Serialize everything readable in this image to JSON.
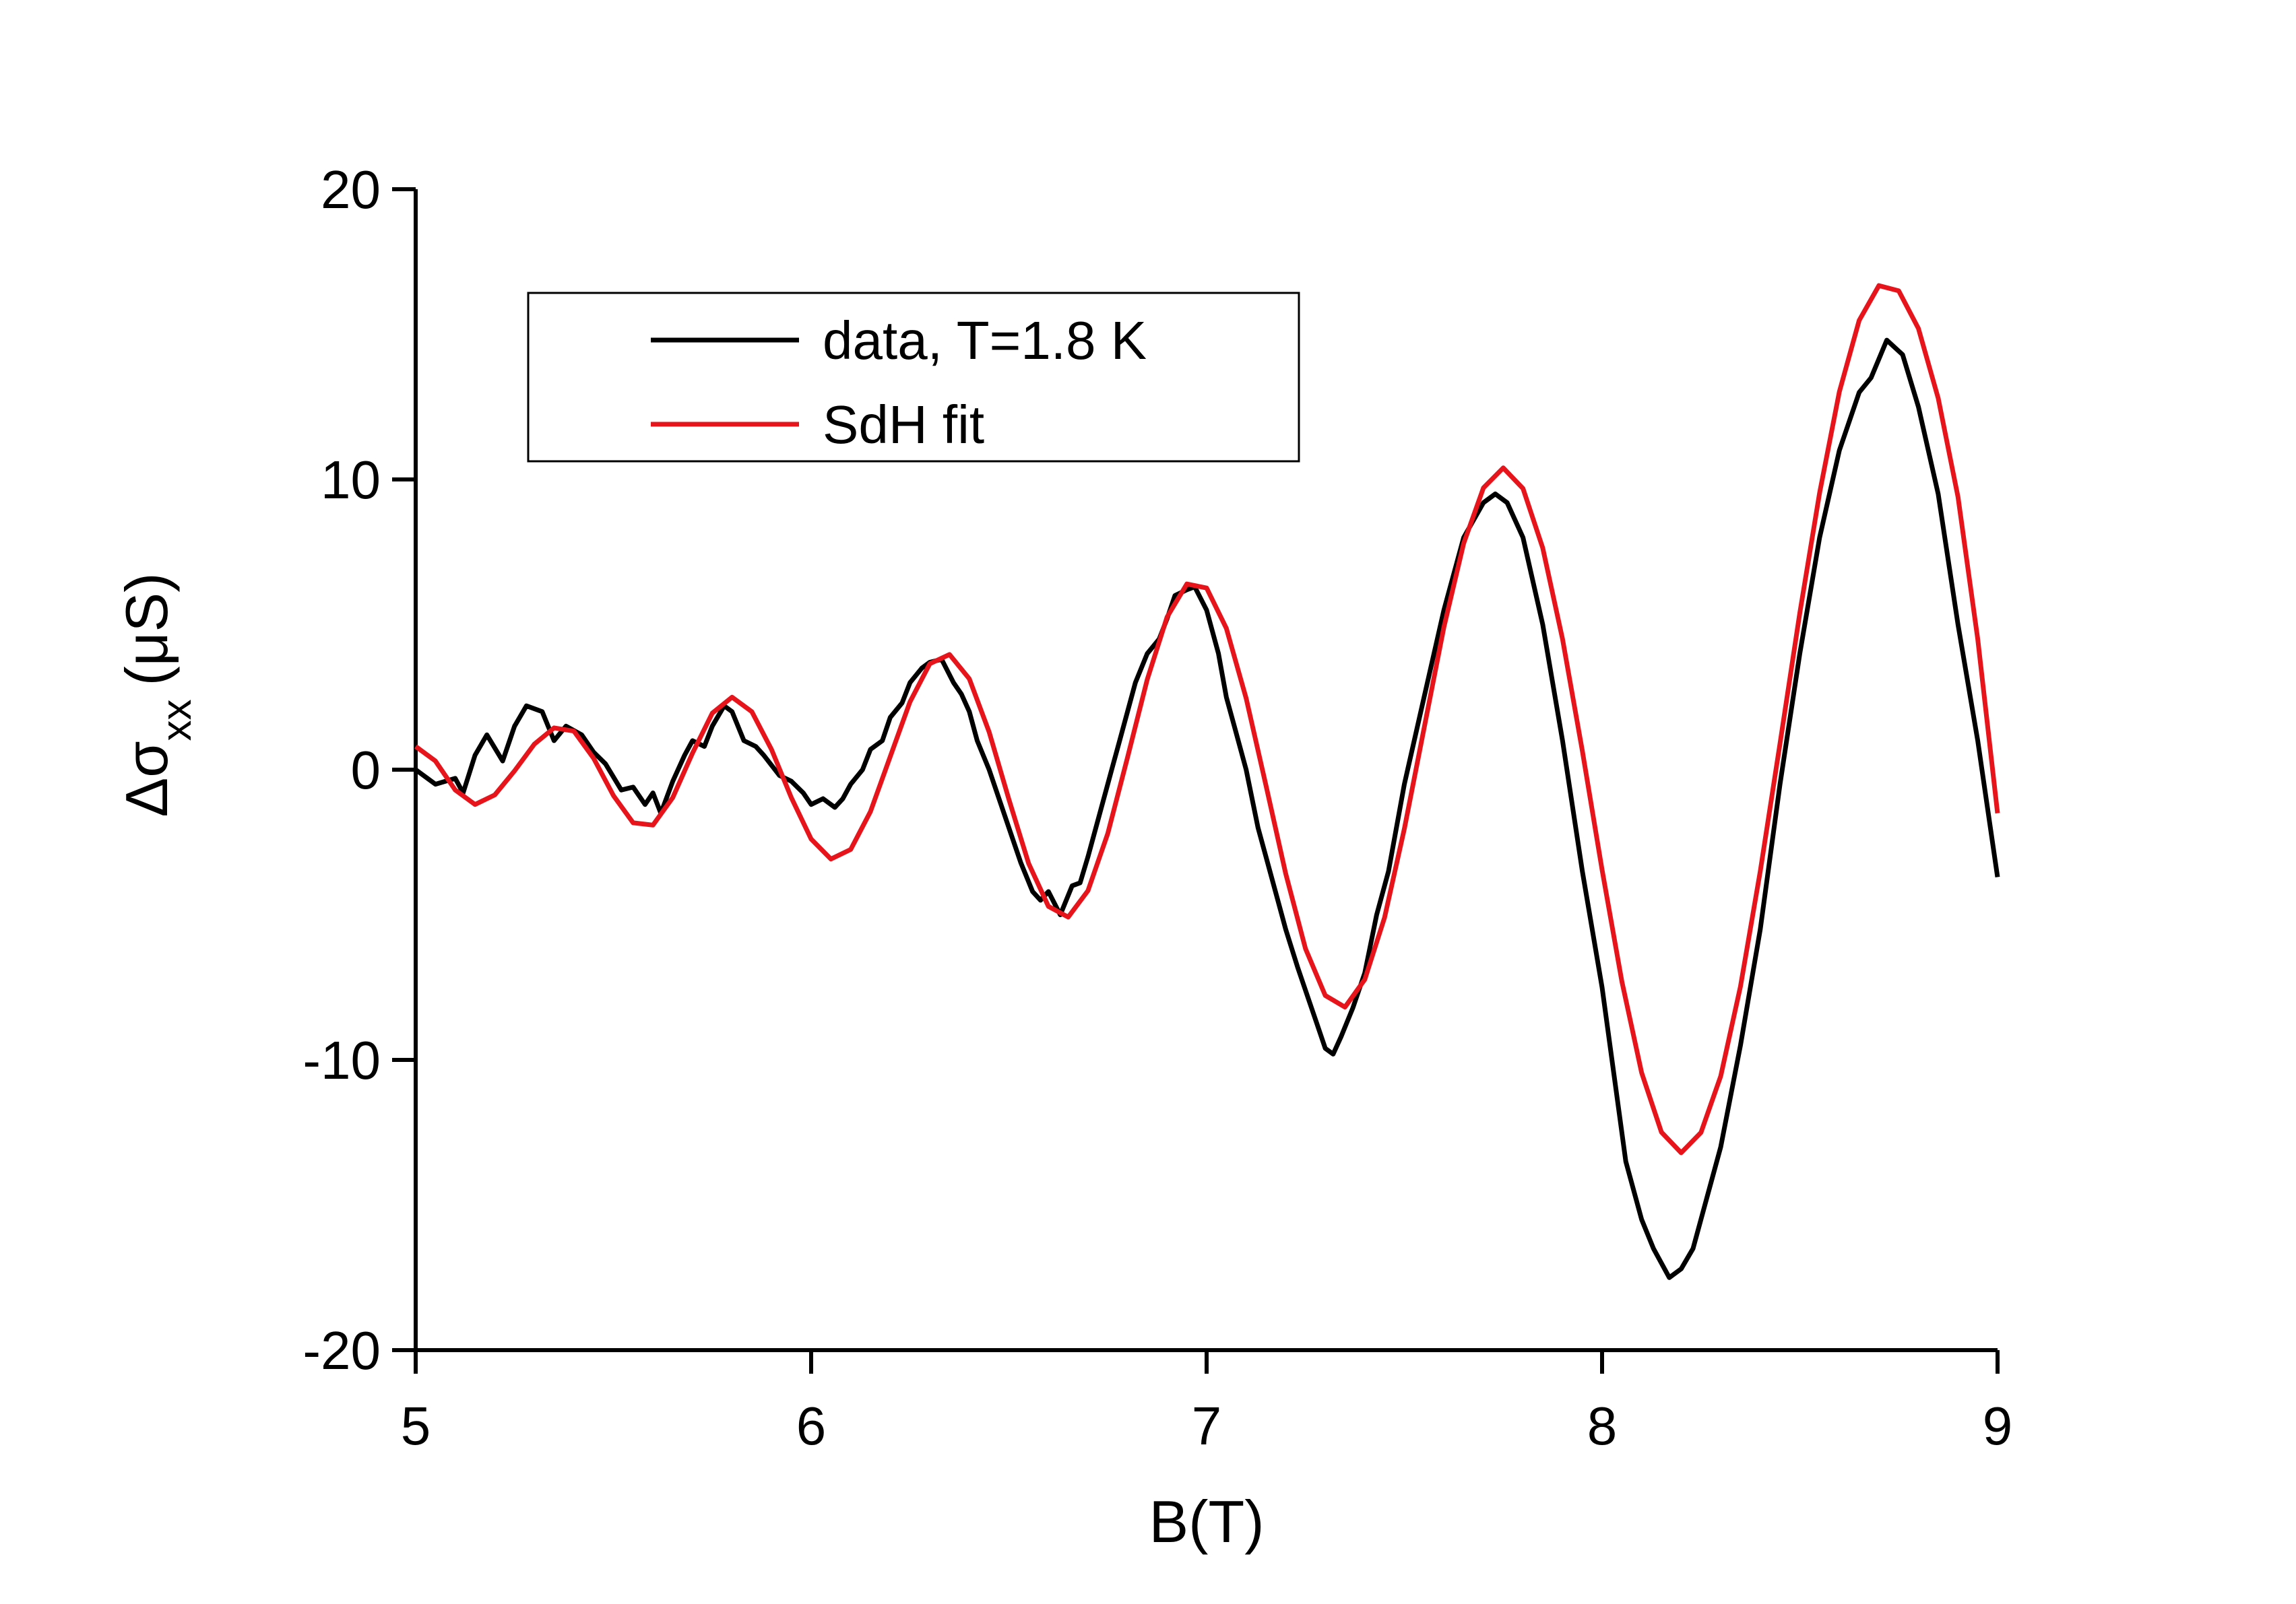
{
  "chart_data": {
    "type": "line",
    "x_label": "B(T)",
    "y_label": {
      "symbol": "Δσ",
      "subscript": "xx",
      "unit": "(μS)"
    },
    "xlim": [
      5,
      9
    ],
    "xticks": [
      5,
      6,
      7,
      8,
      9
    ],
    "ylim": [
      -20,
      20
    ],
    "yticks": [
      -20,
      -10,
      0,
      10,
      20
    ],
    "legend": "upper left",
    "series": [
      {
        "name": "data, T=1.8 K",
        "color": "#000000",
        "x": [
          5.0,
          5.05,
          5.1,
          5.12,
          5.15,
          5.18,
          5.22,
          5.25,
          5.28,
          5.32,
          5.35,
          5.38,
          5.42,
          5.45,
          5.48,
          5.52,
          5.55,
          5.58,
          5.6,
          5.62,
          5.65,
          5.68,
          5.7,
          5.73,
          5.75,
          5.78,
          5.8,
          5.83,
          5.86,
          5.88,
          5.92,
          5.95,
          5.98,
          6.0,
          6.03,
          6.06,
          6.08,
          6.1,
          6.13,
          6.15,
          6.18,
          6.2,
          6.23,
          6.25,
          6.28,
          6.3,
          6.33,
          6.36,
          6.38,
          6.4,
          6.42,
          6.45,
          6.48,
          6.5,
          6.53,
          6.56,
          6.58,
          6.6,
          6.63,
          6.66,
          6.68,
          6.7,
          6.73,
          6.76,
          6.78,
          6.8,
          6.82,
          6.85,
          6.88,
          6.9,
          6.92,
          6.95,
          6.97,
          7.0,
          7.03,
          7.05,
          7.07,
          7.1,
          7.13,
          7.15,
          7.18,
          7.2,
          7.23,
          7.26,
          7.28,
          7.3,
          7.32,
          7.34,
          7.37,
          7.4,
          7.43,
          7.46,
          7.5,
          7.55,
          7.6,
          7.65,
          7.7,
          7.73,
          7.76,
          7.8,
          7.85,
          7.9,
          7.95,
          8.0,
          8.03,
          8.06,
          8.1,
          8.13,
          8.17,
          8.2,
          8.23,
          8.26,
          8.3,
          8.35,
          8.4,
          8.45,
          8.5,
          8.55,
          8.6,
          8.65,
          8.68,
          8.72,
          8.76,
          8.8,
          8.85,
          8.9,
          8.95,
          9.0
        ],
        "values": [
          0,
          -0.5,
          -0.3,
          -0.8,
          0.5,
          1.2,
          0.3,
          1.5,
          2.2,
          2.0,
          1.0,
          1.5,
          1.2,
          0.6,
          0.2,
          -0.7,
          -0.6,
          -1.2,
          -0.8,
          -1.5,
          -0.4,
          0.5,
          1.0,
          0.8,
          1.5,
          2.2,
          2.0,
          1.0,
          0.8,
          0.5,
          -0.2,
          -0.4,
          -0.8,
          -1.2,
          -1.0,
          -1.3,
          -1.0,
          -0.5,
          0.0,
          0.7,
          1.0,
          1.8,
          2.3,
          3.0,
          3.5,
          3.7,
          3.8,
          3.0,
          2.6,
          2.0,
          1.0,
          0.0,
          -1.2,
          -2.0,
          -3.2,
          -4.2,
          -4.5,
          -4.2,
          -5.0,
          -4.0,
          -3.9,
          -3.0,
          -1.5,
          0.0,
          1.0,
          2.0,
          3.0,
          4.0,
          4.5,
          5.2,
          6.0,
          6.2,
          6.3,
          5.5,
          4.0,
          2.5,
          1.5,
          0.0,
          -2.0,
          -3.0,
          -4.5,
          -5.5,
          -6.8,
          -8.0,
          -8.8,
          -9.6,
          -9.8,
          -9.2,
          -8.2,
          -7.0,
          -5.0,
          -3.5,
          -0.5,
          2.5,
          5.5,
          8.0,
          9.2,
          9.5,
          9.2,
          8.0,
          5.0,
          1.0,
          -3.5,
          -7.5,
          -10.5,
          -13.5,
          -15.5,
          -16.5,
          -17.5,
          -17.2,
          -16.5,
          -15.0,
          -13.0,
          -9.5,
          -5.5,
          -0.5,
          4.0,
          8.0,
          11.0,
          13.0,
          13.5,
          14.8,
          14.3,
          12.5,
          9.5,
          5.0,
          1.0,
          -3.7
        ]
      },
      {
        "name": "SdH fit",
        "color": "#e8141c",
        "x": [
          5.0,
          5.05,
          5.1,
          5.15,
          5.2,
          5.25,
          5.3,
          5.35,
          5.4,
          5.45,
          5.5,
          5.55,
          5.6,
          5.65,
          5.7,
          5.75,
          5.8,
          5.85,
          5.9,
          5.95,
          6.0,
          6.05,
          6.1,
          6.15,
          6.2,
          6.25,
          6.3,
          6.35,
          6.4,
          6.45,
          6.5,
          6.55,
          6.6,
          6.65,
          6.7,
          6.75,
          6.8,
          6.85,
          6.9,
          6.95,
          7.0,
          7.05,
          7.1,
          7.15,
          7.2,
          7.25,
          7.3,
          7.35,
          7.4,
          7.45,
          7.5,
          7.55,
          7.6,
          7.65,
          7.7,
          7.75,
          7.8,
          7.85,
          7.9,
          7.95,
          8.0,
          8.05,
          8.1,
          8.15,
          8.2,
          8.25,
          8.3,
          8.35,
          8.4,
          8.45,
          8.5,
          8.55,
          8.6,
          8.65,
          8.7,
          8.75,
          8.8,
          8.85,
          8.9,
          8.95,
          9.0
        ],
        "values": [
          0.8,
          0.3,
          -0.7,
          -1.2,
          -0.87,
          -0.04,
          0.88,
          1.44,
          1.33,
          0.39,
          -0.89,
          -1.83,
          -1.91,
          -0.96,
          0.57,
          1.95,
          2.5,
          2.0,
          0.69,
          -0.97,
          -2.39,
          -3.08,
          -2.75,
          -1.44,
          0.45,
          2.34,
          3.65,
          3.97,
          3.13,
          1.3,
          -1.02,
          -3.23,
          -4.71,
          -5.08,
          -4.17,
          -2.2,
          0.42,
          3.11,
          5.26,
          6.4,
          6.26,
          4.87,
          2.46,
          -0.54,
          -3.58,
          -6.17,
          -7.78,
          -8.18,
          -7.23,
          -5.09,
          -2.04,
          1.43,
          4.91,
          7.8,
          9.71,
          10.4,
          9.69,
          7.64,
          4.5,
          0.65,
          -3.45,
          -7.3,
          -10.44,
          -12.49,
          -13.2,
          -12.5,
          -10.56,
          -7.47,
          -3.5,
          0.9,
          5.4,
          9.54,
          13.02,
          15.48,
          16.68,
          16.5,
          15.2,
          12.8,
          9.4,
          4.5,
          -1.5
        ]
      }
    ]
  }
}
